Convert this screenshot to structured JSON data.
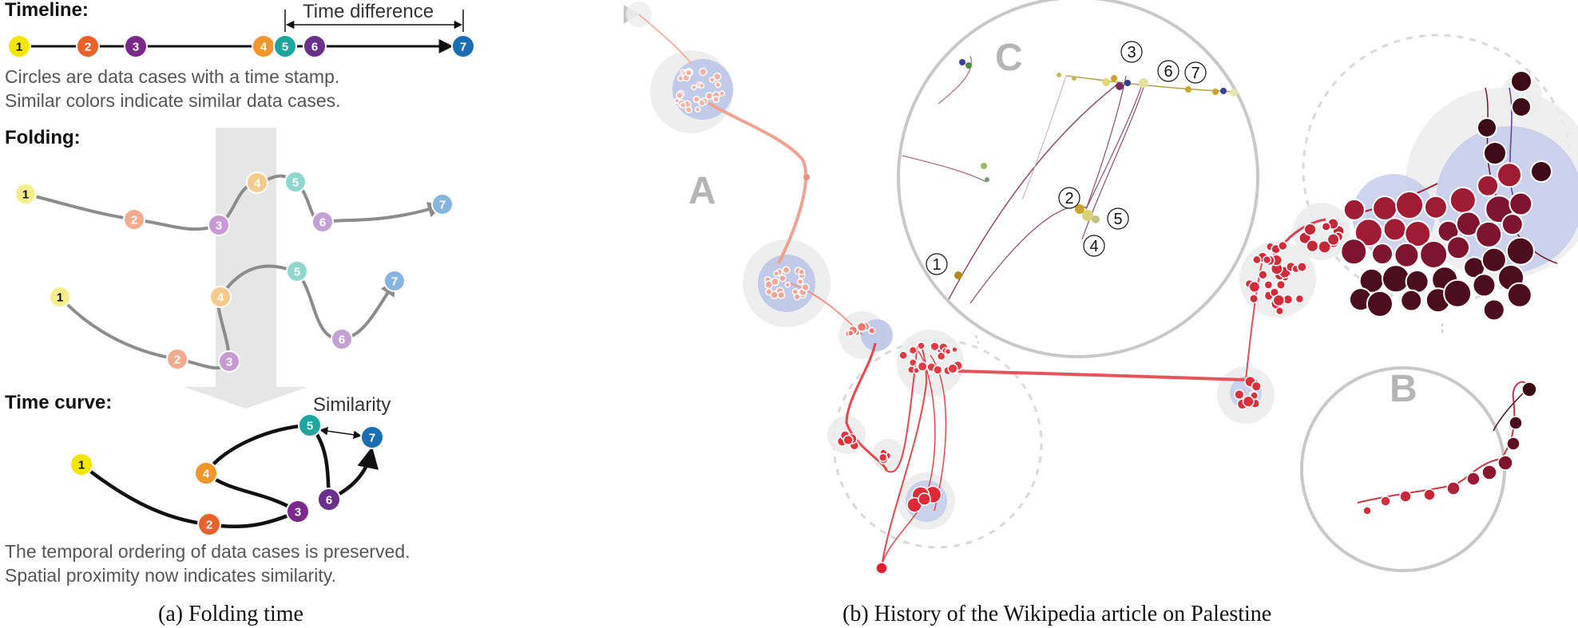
{
  "panel_a": {
    "timeline_title": "Timeline:",
    "time_difference_label": "Time difference",
    "timeline_desc_1": "Circles are data cases with a time stamp.",
    "timeline_desc_2": "Similar colors indicate similar data cases.",
    "folding_title": "Folding:",
    "timecurve_title": "Time curve:",
    "similarity_label": "Similarity",
    "timecurve_desc_1": "The temporal ordering of data cases is preserved.",
    "timecurve_desc_2": "Spatial proximity now indicates similarity.",
    "caption": "(a)  Folding time",
    "node_labels": [
      "1",
      "2",
      "3",
      "4",
      "5",
      "6",
      "7"
    ],
    "node_colors": [
      "#f2e600",
      "#e8622a",
      "#7b2a8c",
      "#f0962a",
      "#1ea59e",
      "#6b2f8c",
      "#1a6fb3"
    ],
    "node_colors_faded": [
      "#f4ef8c",
      "#f2ab8f",
      "#c79ad3",
      "#f6c98c",
      "#8fd6cf",
      "#c2a1d4",
      "#86b6df"
    ]
  },
  "panel_b": {
    "caption": "(b)  History of the Wikipedia article on Palestine",
    "zoom_letters": [
      "A",
      "B",
      "C"
    ],
    "ring_labels": [
      "1",
      "2",
      "3",
      "4",
      "5",
      "6",
      "7"
    ]
  }
}
